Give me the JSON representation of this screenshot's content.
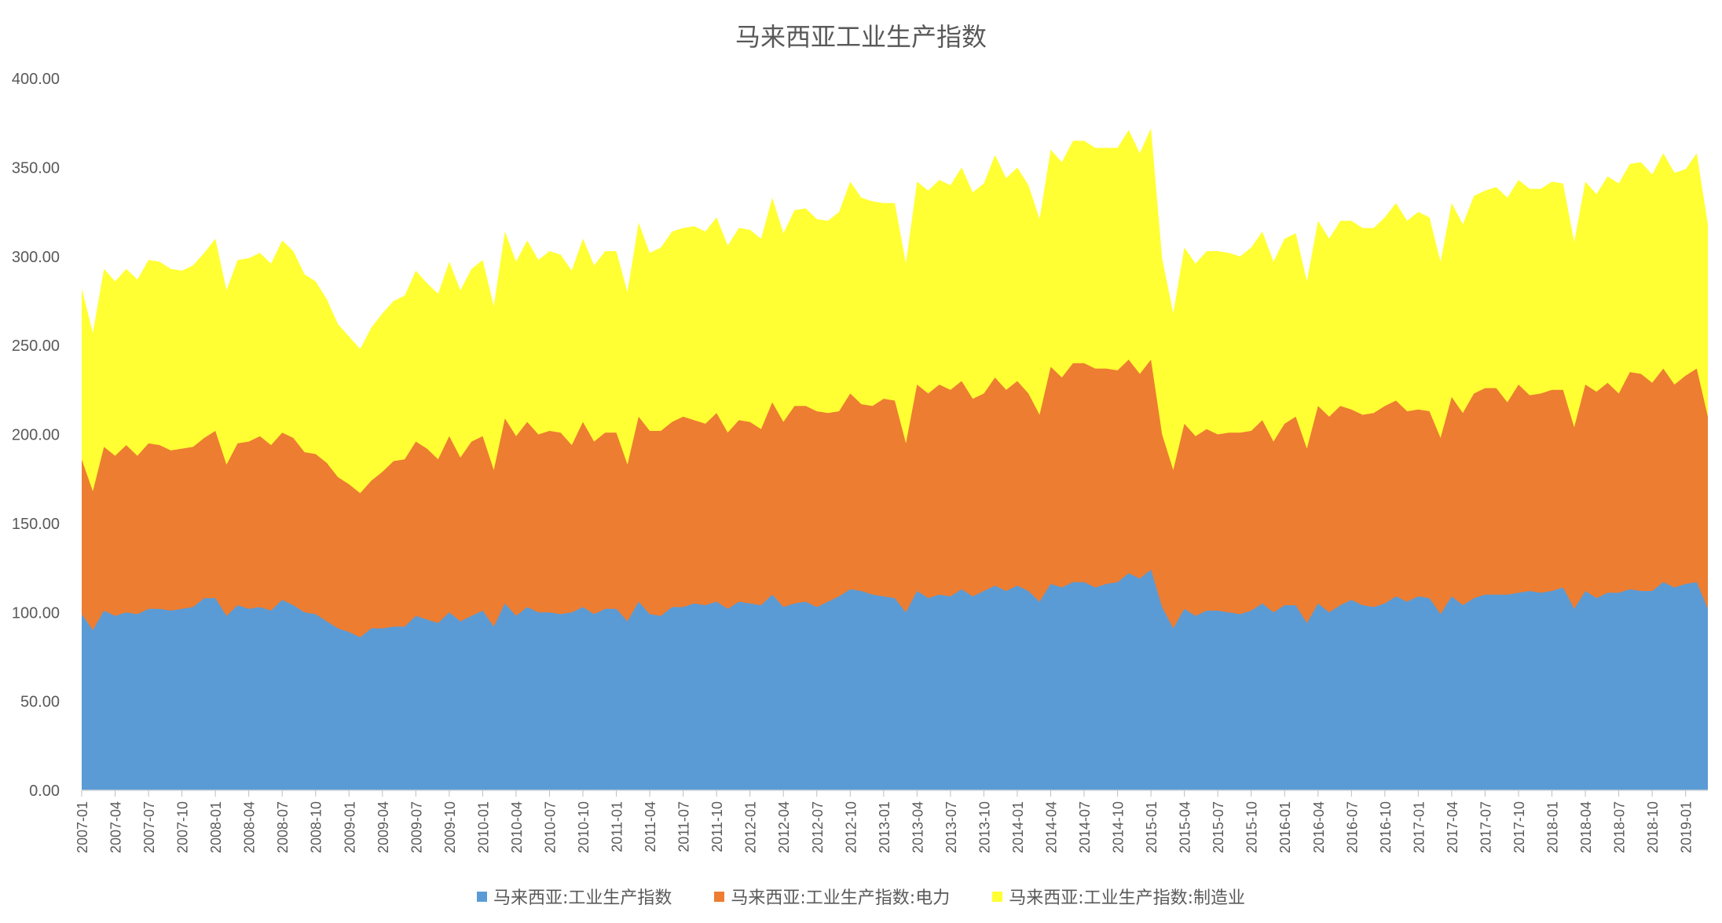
{
  "chart_data": {
    "type": "area",
    "stacked": true,
    "title": "马来西亚工业生产指数",
    "ylim": [
      0,
      400
    ],
    "yticks": [
      "0.00",
      "50.00",
      "100.00",
      "150.00",
      "200.00",
      "250.00",
      "300.00",
      "350.00",
      "400.00"
    ],
    "grid": false,
    "legend_position": "bottom",
    "x_tick_labels": [
      "2007-01",
      "2007-04",
      "2007-07",
      "2007-10",
      "2008-01",
      "2008-04",
      "2008-07",
      "2008-10",
      "2009-01",
      "2009-04",
      "2009-07",
      "2009-10",
      "2010-01",
      "2010-04",
      "2010-07",
      "2010-10",
      "2011-01",
      "2011-04",
      "2011-07",
      "2011-10",
      "2012-01",
      "2012-04",
      "2012-07",
      "2012-10",
      "2013-01",
      "2013-04",
      "2013-07",
      "2013-10",
      "2014-01",
      "2014-04",
      "2014-07",
      "2014-10",
      "2015-01",
      "2015-04",
      "2015-07",
      "2015-10",
      "2016-01",
      "2016-04",
      "2016-07",
      "2016-10",
      "2017-01",
      "2017-04",
      "2017-07",
      "2017-10",
      "2018-01",
      "2018-04",
      "2018-07",
      "2018-10",
      "2019-01"
    ],
    "x_start": "2007-01",
    "x_end": "2019-03",
    "series": [
      {
        "name": "马来西亚:工业生产指数",
        "color": "#5B9BD5",
        "values": [
          99,
          90,
          101,
          98,
          100,
          99,
          102,
          102,
          101,
          102,
          103,
          108,
          108,
          98,
          104,
          102,
          103,
          101,
          107,
          104,
          100,
          99,
          95,
          91,
          89,
          86,
          91,
          91,
          92,
          92,
          98,
          96,
          94,
          100,
          95,
          98,
          101,
          92,
          105,
          98,
          103,
          100,
          100,
          99,
          100,
          103,
          99,
          102,
          102,
          95,
          106,
          99,
          98,
          103,
          103,
          105,
          104,
          106,
          102,
          106,
          105,
          104,
          110,
          103,
          105,
          106,
          103,
          106,
          109,
          113,
          112,
          110,
          109,
          108,
          100,
          112,
          108,
          110,
          109,
          113,
          109,
          112,
          115,
          112,
          115,
          112,
          106,
          116,
          114,
          117,
          117,
          114,
          116,
          117,
          122,
          119,
          124,
          103,
          91,
          102,
          98,
          101,
          101,
          100,
          99,
          101,
          105,
          100,
          104,
          104,
          94,
          105,
          100,
          104,
          107,
          104,
          103,
          105,
          109,
          106,
          109,
          108,
          99,
          109,
          104,
          108,
          110,
          110,
          110,
          111,
          112,
          111,
          112,
          114,
          102,
          112,
          108,
          111,
          111,
          113,
          112,
          112,
          117,
          114,
          116,
          117,
          102
        ],
        "cumulative": [
          99,
          90,
          101,
          98,
          100,
          99,
          102,
          102,
          101,
          102,
          103,
          108,
          108,
          98,
          104,
          102,
          103,
          101,
          107,
          104,
          100,
          99,
          95,
          91,
          89,
          86,
          91,
          91,
          92,
          92,
          98,
          96,
          94,
          100,
          95,
          98,
          101,
          92,
          105,
          98,
          103,
          100,
          100,
          99,
          100,
          103,
          99,
          102,
          102,
          95,
          106,
          99,
          98,
          103,
          103,
          105,
          104,
          106,
          102,
          106,
          105,
          104,
          110,
          103,
          105,
          106,
          103,
          106,
          109,
          113,
          112,
          110,
          109,
          108,
          100,
          112,
          108,
          110,
          109,
          113,
          109,
          112,
          115,
          112,
          115,
          112,
          106,
          116,
          114,
          117,
          117,
          114,
          116,
          117,
          122,
          119,
          124,
          103,
          91,
          102,
          98,
          101,
          101,
          100,
          99,
          101,
          105,
          100,
          104,
          104,
          94,
          105,
          100,
          104,
          107,
          104,
          103,
          105,
          109,
          106,
          109,
          108,
          99,
          109,
          104,
          108,
          110,
          110,
          110,
          111,
          112,
          111,
          112,
          114,
          102,
          112,
          108,
          111,
          111,
          113,
          112,
          112,
          117,
          114,
          116,
          117,
          102
        ]
      },
      {
        "name": "马来西亚:工业生产指数:电力",
        "color": "#ED7D31",
        "values": [
          87,
          78,
          92,
          90,
          94,
          89,
          93,
          92,
          90,
          90,
          90,
          90,
          94,
          85,
          91,
          94,
          96,
          93,
          94,
          94,
          92,
          90,
          89,
          85,
          83,
          81,
          83,
          88,
          93,
          94,
          98,
          96,
          92,
          99,
          92,
          98,
          98,
          88,
          104,
          101,
          104,
          100,
          102,
          102,
          94,
          104,
          97,
          99,
          99,
          88,
          104,
          103,
          104,
          104,
          107,
          103,
          102,
          106,
          99,
          102,
          102,
          99,
          108,
          104,
          111,
          110,
          110,
          106,
          104,
          110,
          105,
          106,
          111,
          111,
          95,
          116,
          115,
          118,
          116,
          117,
          111,
          111,
          117,
          113,
          115,
          111,
          105,
          122,
          118,
          123,
          123,
          123,
          121,
          119,
          120,
          115,
          118,
          97,
          89,
          104,
          101,
          102,
          99,
          101,
          102,
          101,
          103,
          96,
          102,
          106,
          98,
          111,
          110,
          112,
          107,
          107,
          109,
          111,
          110,
          107,
          105,
          105,
          99,
          112,
          108,
          115,
          116,
          116,
          108,
          117,
          110,
          112,
          113,
          111,
          102,
          116,
          116,
          118,
          112,
          122,
          122,
          117,
          120,
          114,
          117,
          120,
          108
        ],
        "cumulative": [
          186,
          168,
          193,
          188,
          194,
          188,
          195,
          194,
          191,
          192,
          193,
          198,
          202,
          183,
          195,
          196,
          199,
          194,
          201,
          198,
          190,
          189,
          184,
          176,
          172,
          167,
          174,
          179,
          185,
          186,
          196,
          192,
          186,
          199,
          187,
          196,
          199,
          180,
          209,
          199,
          207,
          200,
          202,
          201,
          194,
          207,
          196,
          201,
          201,
          183,
          210,
          202,
          202,
          207,
          210,
          208,
          206,
          212,
          201,
          208,
          207,
          203,
          218,
          207,
          216,
          216,
          213,
          212,
          213,
          223,
          217,
          216,
          220,
          219,
          195,
          228,
          223,
          228,
          225,
          230,
          220,
          223,
          232,
          225,
          230,
          223,
          211,
          238,
          232,
          240,
          240,
          237,
          237,
          236,
          242,
          234,
          242,
          200,
          180,
          206,
          199,
          203,
          200,
          201,
          201,
          202,
          208,
          196,
          206,
          210,
          192,
          216,
          210,
          216,
          214,
          211,
          212,
          216,
          219,
          213,
          214,
          213,
          198,
          221,
          212,
          223,
          226,
          226,
          218,
          228,
          222,
          223,
          225,
          225,
          204,
          228,
          224,
          229,
          223,
          235,
          234,
          229,
          237,
          228,
          233,
          237,
          210
        ]
      },
      {
        "name": "马来西亚:工业生产指数:制造业",
        "color": "#FFFF33",
        "values": [
          96,
          89,
          100,
          98,
          99,
          99,
          103,
          103,
          102,
          100,
          102,
          104,
          108,
          98,
          103,
          103,
          103,
          102,
          108,
          105,
          100,
          97,
          92,
          86,
          83,
          81,
          86,
          89,
          90,
          92,
          96,
          93,
          93,
          98,
          94,
          97,
          99,
          92,
          105,
          98,
          102,
          98,
          101,
          100,
          98,
          103,
          99,
          102,
          102,
          97,
          109,
          100,
          103,
          107,
          106,
          109,
          108,
          110,
          105,
          108,
          108,
          107,
          115,
          106,
          110,
          111,
          108,
          108,
          112,
          119,
          116,
          115,
          110,
          111,
          101,
          114,
          114,
          115,
          115,
          120,
          116,
          118,
          125,
          119,
          120,
          117,
          110,
          122,
          121,
          125,
          125,
          124,
          124,
          125,
          129,
          124,
          130,
          99,
          88,
          99,
          97,
          100,
          103,
          101,
          99,
          103,
          106,
          101,
          104,
          103,
          94,
          104,
          100,
          104,
          106,
          105,
          104,
          106,
          111,
          107,
          111,
          109,
          99,
          109,
          106,
          111,
          111,
          113,
          115,
          115,
          116,
          115,
          117,
          116,
          104,
          114,
          111,
          116,
          118,
          117,
          119,
          117,
          121,
          119,
          116,
          121,
          108
        ],
        "cumulative": [
          282,
          257,
          293,
          286,
          293,
          287,
          298,
          297,
          293,
          292,
          295,
          302,
          310,
          281,
          298,
          299,
          302,
          296,
          309,
          303,
          290,
          286,
          276,
          262,
          255,
          248,
          260,
          268,
          275,
          278,
          292,
          285,
          279,
          297,
          281,
          293,
          298,
          272,
          314,
          297,
          309,
          298,
          303,
          301,
          292,
          310,
          295,
          303,
          303,
          280,
          319,
          302,
          305,
          314,
          316,
          317,
          314,
          322,
          306,
          316,
          315,
          310,
          333,
          313,
          326,
          327,
          321,
          320,
          325,
          342,
          333,
          331,
          330,
          330,
          296,
          342,
          337,
          343,
          340,
          350,
          336,
          341,
          357,
          344,
          350,
          340,
          321,
          360,
          353,
          365,
          365,
          361,
          361,
          361,
          371,
          358,
          372,
          299,
          268,
          305,
          296,
          303,
          303,
          302,
          300,
          305,
          314,
          297,
          310,
          313,
          286,
          320,
          310,
          320,
          320,
          316,
          316,
          322,
          330,
          320,
          325,
          322,
          297,
          330,
          318,
          334,
          337,
          339,
          333,
          343,
          338,
          338,
          342,
          341,
          308,
          342,
          335,
          345,
          341,
          352,
          353,
          346,
          358,
          347,
          349,
          358,
          318
        ]
      }
    ]
  }
}
